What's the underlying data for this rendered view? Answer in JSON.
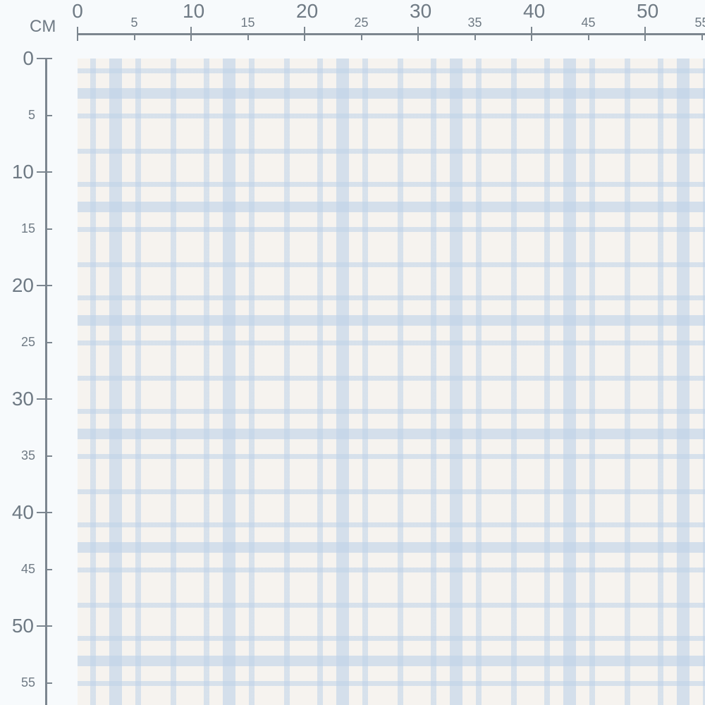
{
  "unit_label": "CM",
  "top_ruler": {
    "major": [
      "0",
      "10",
      "20",
      "30",
      "40",
      "50"
    ],
    "minor": [
      "5",
      "15",
      "25",
      "35",
      "45",
      "55"
    ]
  },
  "left_ruler": {
    "major": [
      "0",
      "10",
      "20",
      "30",
      "40",
      "50"
    ],
    "minor": [
      "5",
      "15",
      "25",
      "35",
      "45",
      "55"
    ]
  },
  "colors": {
    "fabric": "#f6f3ef",
    "stripe": "#d4e1ee",
    "ruler": "#7c868f"
  }
}
